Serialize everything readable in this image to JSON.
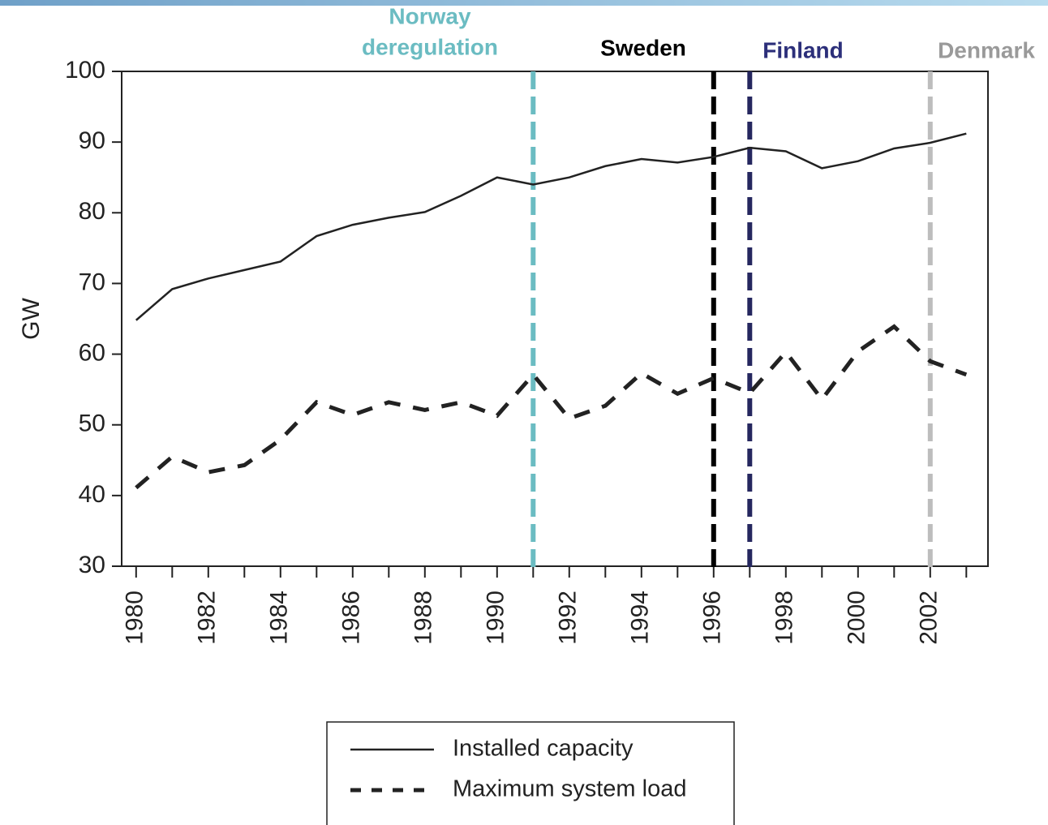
{
  "chart_data": {
    "type": "line",
    "y_label": "GW",
    "x": [
      1980,
      1981,
      1982,
      1983,
      1984,
      1985,
      1986,
      1987,
      1988,
      1989,
      1990,
      1991,
      1992,
      1993,
      1994,
      1995,
      1996,
      1997,
      1998,
      1999,
      2000,
      2001,
      2002,
      2003
    ],
    "series": [
      {
        "name": "Installed capacity",
        "color": "#222222",
        "style": "solid",
        "values": [
          64.8,
          69.2,
          70.7,
          71.9,
          73.1,
          76.7,
          78.3,
          79.3,
          80.1,
          82.4,
          85.0,
          84.0,
          85.0,
          86.6,
          87.6,
          87.1,
          87.9,
          89.2,
          88.7,
          86.3,
          87.3,
          89.1,
          89.9,
          91.2
        ]
      },
      {
        "name": "Maximum system load",
        "color": "#222222",
        "style": "dashed",
        "values": [
          41.1,
          45.5,
          43.3,
          44.3,
          47.9,
          53.2,
          51.4,
          53.2,
          52.1,
          53.2,
          51.3,
          57.1,
          50.9,
          52.7,
          57.3,
          54.4,
          56.6,
          54.5,
          60.3,
          53.6,
          60.4,
          63.9,
          59.0,
          57.1
        ]
      }
    ],
    "xlim": [
      1979.6,
      2003.6
    ],
    "xticks": [
      1980,
      1982,
      1984,
      1986,
      1988,
      1990,
      1992,
      1994,
      1996,
      1998,
      2000,
      2002
    ],
    "xticks_minor": [
      1981,
      1983,
      1985,
      1987,
      1989,
      1991,
      1993,
      1995,
      1997,
      1999,
      2001,
      2003
    ],
    "ylim": [
      30,
      100
    ],
    "yticks": [
      30,
      40,
      50,
      60,
      70,
      80,
      90,
      100
    ],
    "annotations": [
      {
        "x": 1991,
        "lines": [
          "Norway",
          "deregulation"
        ],
        "color": "#6bbcc2",
        "text_color": "#6bbcc2"
      },
      {
        "x": 1996,
        "lines": [
          "Sweden"
        ],
        "color": "#000000",
        "text_color": "#000000"
      },
      {
        "x": 1997,
        "lines": [
          "Finland"
        ],
        "color": "#25275f",
        "text_color": "#2c2f7a"
      },
      {
        "x": 2002,
        "lines": [
          "Denmark"
        ],
        "color": "#bdbdbd",
        "text_color": "#9a9a9a"
      }
    ]
  }
}
